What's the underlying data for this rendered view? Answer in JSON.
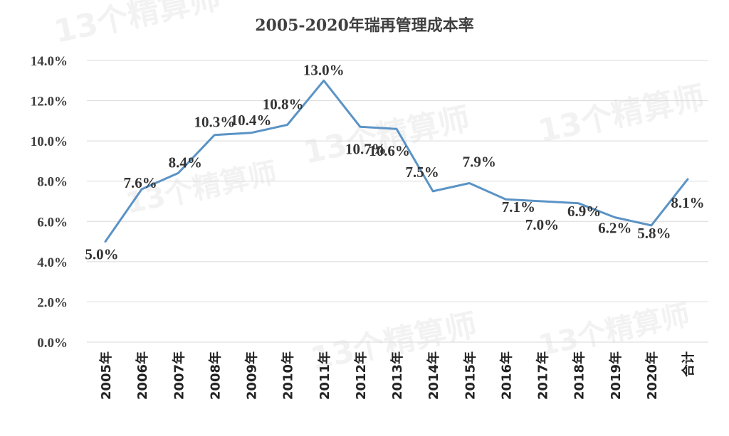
{
  "watermark": "13个精算师",
  "chart_data": {
    "type": "line",
    "title": "2005-2020年瑞再管理成本率",
    "xlabel": "",
    "ylabel": "",
    "categories": [
      "2005年",
      "2006年",
      "2007年",
      "2008年",
      "2009年",
      "2010年",
      "2011年",
      "2012年",
      "2013年",
      "2014年",
      "2015年",
      "2016年",
      "2017年",
      "2018年",
      "2019年",
      "2020年",
      "合计"
    ],
    "series": [
      {
        "values": [
          5.0,
          7.6,
          8.4,
          10.3,
          10.4,
          10.8,
          13.0,
          10.7,
          10.6,
          7.5,
          7.9,
          7.1,
          7.0,
          6.9,
          6.2,
          5.8,
          8.1
        ],
        "labels": [
          "5.0%",
          "7.6%",
          "8.4%",
          "10.3%",
          "10.4%",
          "10.8%",
          "13.0%",
          "10.7%",
          "10.6%",
          "7.5%",
          "7.9%",
          "7.1%",
          "7.0%",
          "6.9%",
          "6.2%",
          "5.8%",
          "8.1%"
        ],
        "color": "#5b93c5"
      }
    ],
    "ylim": [
      0,
      14
    ],
    "yticks": [
      "0.0%",
      "2.0%",
      "4.0%",
      "6.0%",
      "8.0%",
      "10.0%",
      "12.0%",
      "14.0%"
    ],
    "grid": true,
    "legend": "none"
  }
}
